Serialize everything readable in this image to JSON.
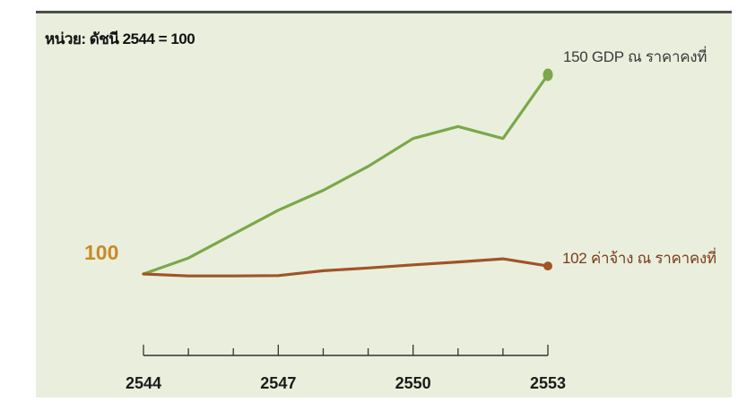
{
  "unit_text": "หน่วย: ดัชนี 2544 = 100",
  "baseline_text": "100",
  "gdp_label_text": "150 GDP ณ ราคาคงที่",
  "wage_label_text": "102 ค่าจ้าง ณ ราคาคงที่",
  "colors": {
    "gdp_line": "#7aa84a",
    "wage_line": "#a05428",
    "baseline_text": "#c8892b",
    "background": "#e9efdc",
    "axis": "#333333"
  },
  "chart_data": {
    "type": "line",
    "x": [
      2544,
      2545,
      2546,
      2547,
      2548,
      2549,
      2550,
      2551,
      2552,
      2553
    ],
    "x_tick_labels": [
      "2544",
      "2547",
      "2550",
      "2553"
    ],
    "x_tick_values": [
      2544,
      2547,
      2550,
      2553
    ],
    "xlim": [
      2544,
      2553
    ],
    "ylim": [
      90,
      155
    ],
    "grid": false,
    "series": [
      {
        "key": "gdp",
        "values": [
          100,
          104,
          110,
          116,
          121,
          127,
          134,
          137,
          134,
          150
        ],
        "end_label": "150 GDP ณ ราคาคงที่"
      },
      {
        "key": "wage",
        "values": [
          100,
          99.5,
          99.5,
          99.6,
          100.8,
          101.5,
          102.3,
          103,
          103.8,
          102
        ],
        "end_label": "102 ค่าจ้าง ณ ราคาคงที่"
      }
    ]
  }
}
